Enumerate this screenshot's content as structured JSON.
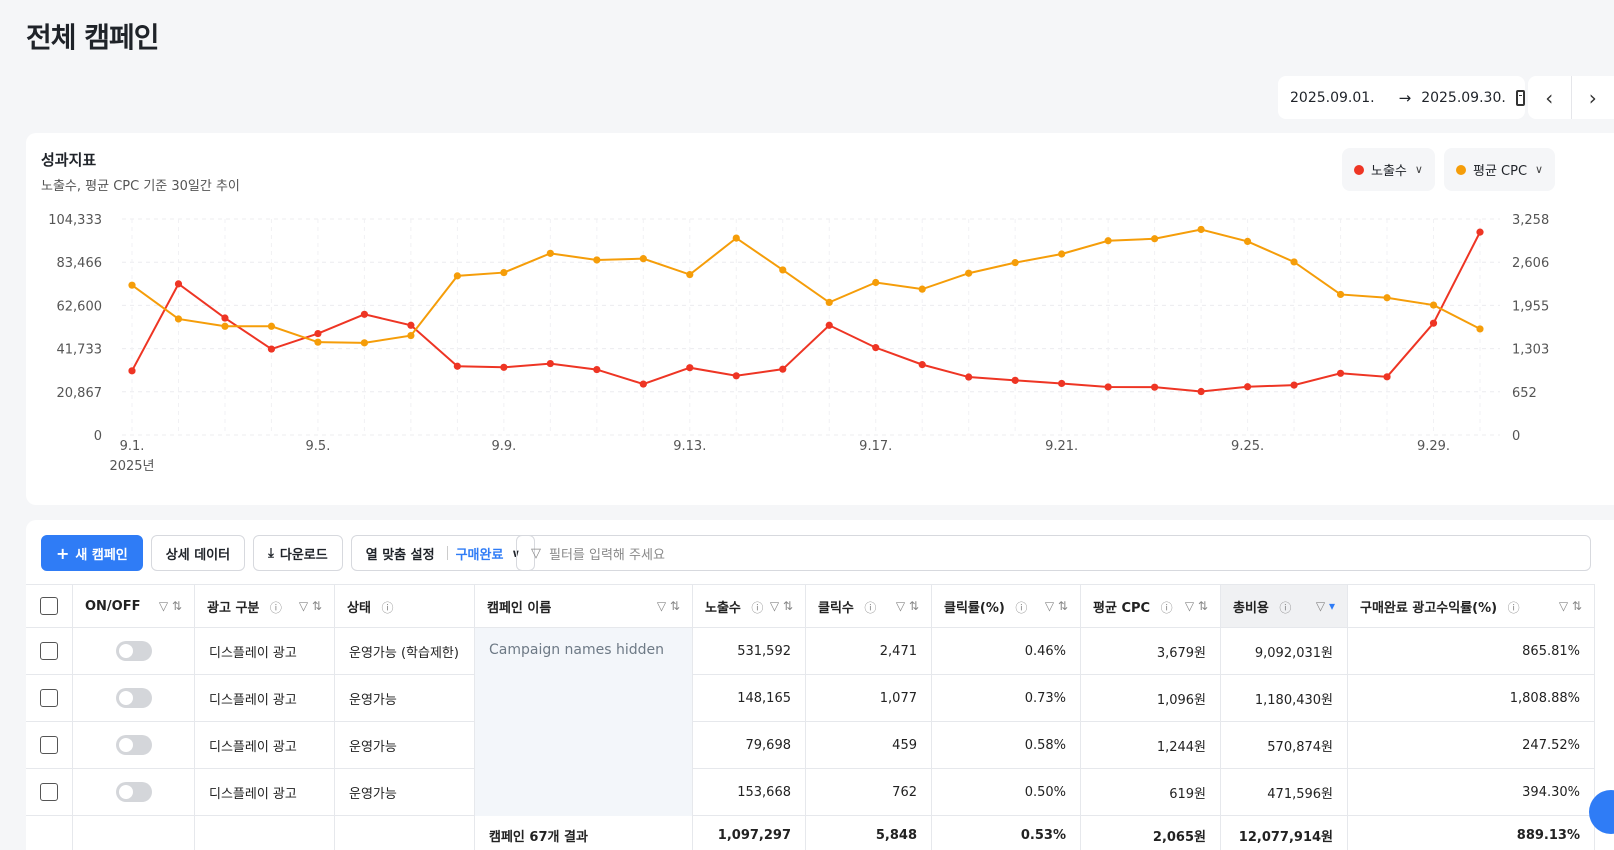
{
  "page": {
    "title": "전체 캠페인"
  },
  "date_range": {
    "start": "2025.09.01.",
    "end": "2025.09.30.",
    "arrow": "→"
  },
  "nav": {
    "prev": "‹",
    "next": "›"
  },
  "metrics_card": {
    "title": "성과지표",
    "subtitle": "노출수, 평균 CPC 기준 30일간 추이",
    "legend": [
      {
        "label": "노출수",
        "color": "#ee3524"
      },
      {
        "label": "평균 CPC",
        "color": "#f59d09"
      }
    ]
  },
  "chart_data": {
    "type": "line",
    "x": [
      "9.1.",
      "9.2.",
      "9.3.",
      "9.4.",
      "9.5.",
      "9.6.",
      "9.7.",
      "9.8.",
      "9.9.",
      "9.10.",
      "9.11.",
      "9.12.",
      "9.13.",
      "9.14.",
      "9.15.",
      "9.16.",
      "9.17.",
      "9.18.",
      "9.19.",
      "9.20.",
      "9.21.",
      "9.22.",
      "9.23.",
      "9.24.",
      "9.25.",
      "9.26.",
      "9.27.",
      "9.28.",
      "9.29.",
      "9.30."
    ],
    "x_tick_labels": [
      "9.1.",
      "9.5.",
      "9.9.",
      "9.13.",
      "9.17.",
      "9.21.",
      "9.25.",
      "9.29."
    ],
    "x_year_label": "2025년",
    "left_axis": {
      "ticks": [
        "0",
        "20,867",
        "41,733",
        "62,600",
        "83,466",
        "104,333"
      ],
      "range": [
        0,
        104333
      ]
    },
    "right_axis": {
      "ticks": [
        "0",
        "652",
        "1,303",
        "1,955",
        "2,606",
        "3,258"
      ],
      "range": [
        0,
        3258
      ]
    },
    "grid": true,
    "series": [
      {
        "name": "노출수",
        "axis": "left",
        "color": "#ee3524",
        "values": [
          31000,
          73000,
          56500,
          41500,
          49000,
          58300,
          53000,
          33200,
          32700,
          34500,
          31600,
          24600,
          32500,
          28600,
          31800,
          53000,
          42200,
          34000,
          28000,
          26400,
          24900,
          23200,
          23100,
          21000,
          23300,
          24100,
          29800,
          28100,
          54000,
          98000
        ]
      },
      {
        "name": "평균 CPC",
        "axis": "right",
        "color": "#f59d09",
        "values": [
          2260,
          1750,
          1640,
          1640,
          1400,
          1390,
          1500,
          2400,
          2450,
          2740,
          2640,
          2660,
          2420,
          2970,
          2490,
          2000,
          2300,
          2200,
          2440,
          2600,
          2730,
          2930,
          2960,
          3100,
          2920,
          2610,
          2120,
          2070,
          1960,
          1600
        ]
      }
    ]
  },
  "toolbar": {
    "new_campaign": "새 캠페인",
    "detail_data": "상세 데이터",
    "download": "다운로드",
    "column_setting": "열 맞춤 설정",
    "column_setting_value": "구매완료",
    "filter_placeholder": "필터를 입력해 주세요"
  },
  "table": {
    "headers": {
      "onoff": "ON/OFF",
      "ad_type": "광고 구분",
      "status": "상태",
      "campaign_name": "캠페인 이름",
      "impressions": "노출수",
      "clicks": "클릭수",
      "ctr": "클릭률(%)",
      "cpc": "평균 CPC",
      "cost": "총비용",
      "roas": "구매완료 광고수익률(%)"
    },
    "campaign_names_hidden": "Campaign names hidden",
    "rows": [
      {
        "ad_type": "디스플레이 광고",
        "status": "운영가능 (학습제한)",
        "impressions": "531,592",
        "clicks": "2,471",
        "ctr": "0.46%",
        "cpc": "3,679원",
        "cost": "9,092,031원",
        "roas": "865.81%"
      },
      {
        "ad_type": "디스플레이 광고",
        "status": "운영가능",
        "impressions": "148,165",
        "clicks": "1,077",
        "ctr": "0.73%",
        "cpc": "1,096원",
        "cost": "1,180,430원",
        "roas": "1,808.88%"
      },
      {
        "ad_type": "디스플레이 광고",
        "status": "운영가능",
        "impressions": "79,698",
        "clicks": "459",
        "ctr": "0.58%",
        "cpc": "1,244원",
        "cost": "570,874원",
        "roas": "247.52%"
      },
      {
        "ad_type": "디스플레이 광고",
        "status": "운영가능",
        "impressions": "153,668",
        "clicks": "762",
        "ctr": "0.50%",
        "cpc": "619원",
        "cost": "471,596원",
        "roas": "394.30%"
      }
    ],
    "total": {
      "label": "캠페인 67개 결과",
      "impressions": "1,097,297",
      "clicks": "5,848",
      "ctr": "0.53%",
      "cpc": "2,065원",
      "cost": "12,077,914원",
      "roas": "889.13%"
    }
  }
}
